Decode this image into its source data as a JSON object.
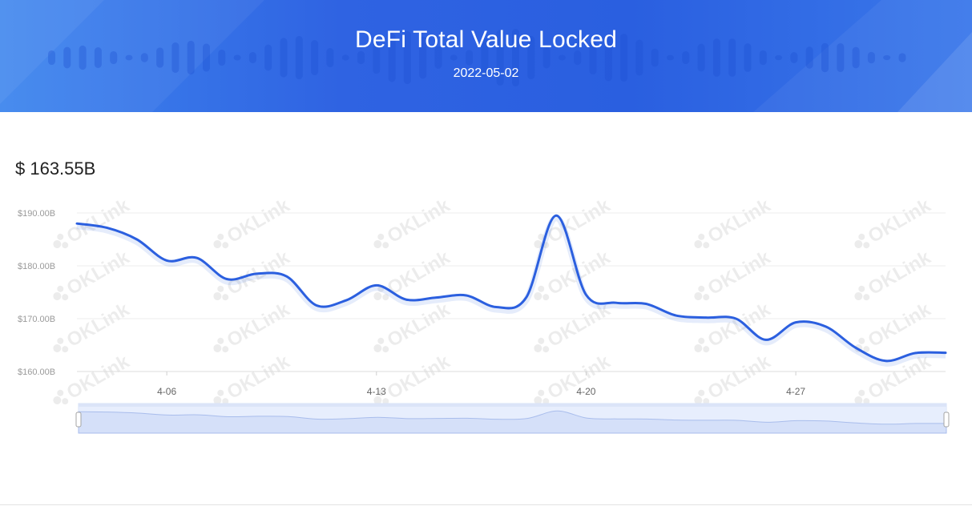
{
  "header": {
    "title": "DeFi Total Value Locked",
    "date": "2022-05-02"
  },
  "summary": {
    "total_value": "$ 163.55B"
  },
  "watermark": "OKLink",
  "colors": {
    "banner": "#2f63e2",
    "line": "#2b5fdf",
    "slider_fill": "#e3ebfd",
    "grid": "#ececec",
    "tick_text": "#9a9a9a"
  },
  "chart_data": {
    "type": "line",
    "title": "",
    "xlabel": "",
    "ylabel": "",
    "y_ticks": [
      "$160.00B",
      "$170.00B",
      "$180.00B",
      "$190.00B"
    ],
    "y_tick_values": [
      160,
      170,
      180,
      190
    ],
    "ylim": [
      160,
      190
    ],
    "x_ticks": [
      "4-06",
      "4-13",
      "4-20",
      "4-27"
    ],
    "x_tick_values": [
      "2022-04-06",
      "2022-04-13",
      "2022-04-20",
      "2022-04-27"
    ],
    "grid": true,
    "series": [
      {
        "x": [
          "2022-04-03",
          "2022-04-04",
          "2022-04-05",
          "2022-04-06",
          "2022-04-07",
          "2022-04-08",
          "2022-04-09",
          "2022-04-10",
          "2022-04-11",
          "2022-04-12",
          "2022-04-13",
          "2022-04-14",
          "2022-04-15",
          "2022-04-16",
          "2022-04-17",
          "2022-04-18",
          "2022-04-19",
          "2022-04-20",
          "2022-04-21",
          "2022-04-22",
          "2022-04-23",
          "2022-04-24",
          "2022-04-25",
          "2022-04-26",
          "2022-04-27",
          "2022-04-28",
          "2022-04-29",
          "2022-04-30",
          "2022-05-01",
          "2022-05-02"
        ],
        "y": [
          188.0,
          187.2,
          185.0,
          181.0,
          181.5,
          177.5,
          178.5,
          178.0,
          172.5,
          173.5,
          176.3,
          173.6,
          174.0,
          174.4,
          172.2,
          174.0,
          189.5,
          174.5,
          173.0,
          172.8,
          170.6,
          170.2,
          170.0,
          166.0,
          169.3,
          168.5,
          164.5,
          162.0,
          163.5,
          163.55
        ]
      }
    ],
    "slider": {
      "start": 0,
      "end": 100
    }
  }
}
